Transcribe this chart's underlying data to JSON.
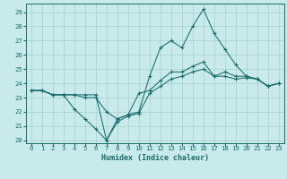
{
  "xlabel": "Humidex (Indice chaleur)",
  "background_color": "#c8eaea",
  "grid_color": "#a8d0d0",
  "line_color": "#1a6b6b",
  "xlim": [
    -0.5,
    23.5
  ],
  "ylim": [
    19.8,
    29.6
  ],
  "yticks": [
    20,
    21,
    22,
    23,
    24,
    25,
    26,
    27,
    28,
    29
  ],
  "xticks": [
    0,
    1,
    2,
    3,
    4,
    5,
    6,
    7,
    8,
    9,
    10,
    11,
    12,
    13,
    14,
    15,
    16,
    17,
    18,
    19,
    20,
    21,
    22,
    23
  ],
  "series": [
    [
      23.5,
      23.5,
      23.2,
      23.2,
      23.2,
      23.2,
      23.2,
      20.0,
      21.5,
      21.8,
      22.0,
      24.5,
      26.5,
      27.0,
      26.5,
      28.0,
      29.2,
      27.5,
      26.4,
      25.3,
      24.5,
      24.3,
      23.8,
      24.0
    ],
    [
      23.5,
      23.5,
      23.2,
      23.2,
      23.2,
      23.0,
      23.0,
      22.0,
      21.5,
      21.8,
      23.3,
      23.5,
      24.2,
      24.8,
      24.8,
      25.2,
      25.5,
      24.5,
      24.8,
      24.5,
      24.5,
      24.3,
      23.8,
      24.0
    ],
    [
      23.5,
      23.5,
      23.2,
      23.2,
      22.2,
      21.5,
      20.8,
      20.0,
      21.3,
      21.7,
      21.9,
      23.3,
      23.8,
      24.3,
      24.5,
      24.8,
      25.0,
      24.5,
      24.5,
      24.3,
      24.4,
      24.3,
      23.8,
      24.0
    ]
  ],
  "xlabel_fontsize": 6.0,
  "tick_fontsize": 5.2
}
